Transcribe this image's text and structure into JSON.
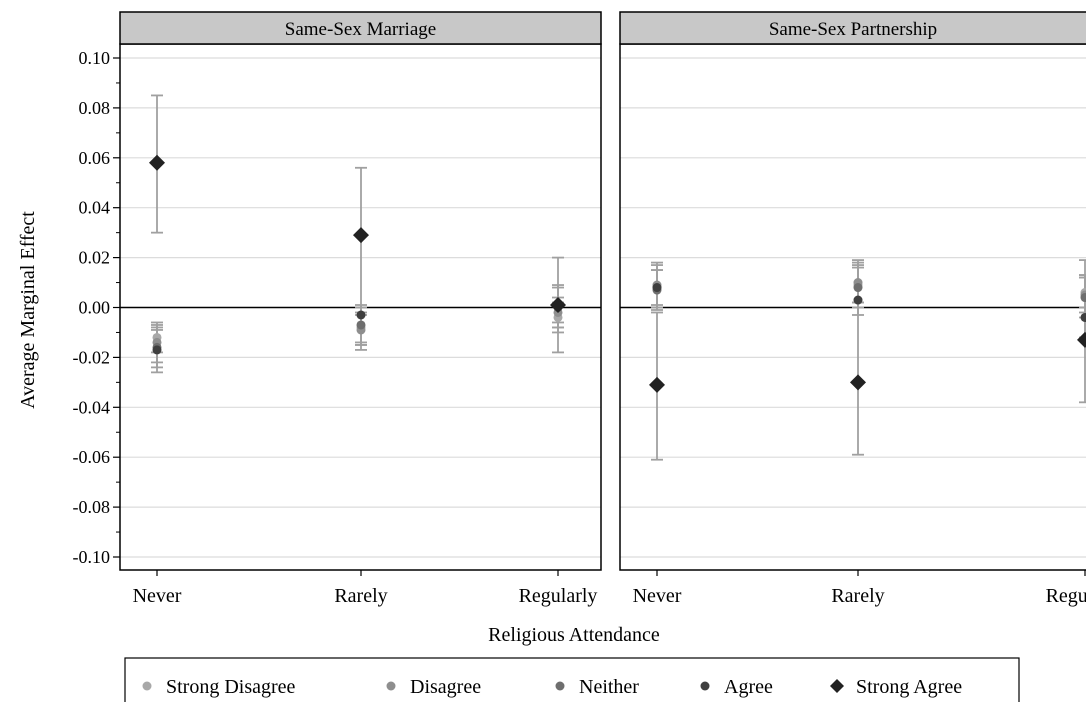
{
  "chart_data": {
    "type": "scatter",
    "ylabel": "Average Marginal Effect",
    "xlabel": "Religious Attendance",
    "categories": [
      "Never",
      "Rarely",
      "Regularly"
    ],
    "ylim": [
      -0.1,
      0.1
    ],
    "yticks": [
      "0.10",
      "0.08",
      "0.06",
      "0.04",
      "0.02",
      "0.00",
      "-0.02",
      "-0.04",
      "-0.06",
      "-0.08",
      "-0.10"
    ],
    "ytick_values": [
      0.1,
      0.08,
      0.06,
      0.04,
      0.02,
      0.0,
      -0.02,
      -0.04,
      -0.06,
      -0.08,
      -0.1
    ],
    "grid": "horizontal",
    "legend_position": "bottom",
    "reference_line": 0,
    "series_styles": [
      {
        "name": "Strong Disagree",
        "marker": "circle",
        "color": "#a8a8a8"
      },
      {
        "name": "Disagree",
        "marker": "circle",
        "color": "#8e8e8e"
      },
      {
        "name": "Neither",
        "marker": "circle",
        "color": "#6e6e6e"
      },
      {
        "name": "Agree",
        "marker": "circle",
        "color": "#3f3f3f"
      },
      {
        "name": "Strong Agree",
        "marker": "diamond",
        "color": "#222222"
      }
    ],
    "errorbar_color": "#a0a0a0",
    "panels": [
      {
        "title": "Same-Sex Marriage",
        "series": [
          {
            "name": "Strong Disagree",
            "values": [
              -0.012,
              -0.008,
              -0.004
            ],
            "lower": [
              -0.018,
              -0.014,
              -0.01
            ],
            "upper": [
              -0.006,
              -0.002,
              0.002
            ]
          },
          {
            "name": "Disagree",
            "values": [
              -0.014,
              -0.009,
              -0.002
            ],
            "lower": [
              -0.022,
              -0.015,
              -0.008
            ],
            "upper": [
              -0.007,
              -0.003,
              0.004
            ]
          },
          {
            "name": "Neither",
            "values": [
              -0.016,
              -0.007,
              0.0
            ],
            "lower": [
              -0.024,
              -0.015,
              -0.006
            ],
            "upper": [
              -0.008,
              0.001,
              0.008
            ]
          },
          {
            "name": "Agree",
            "values": [
              -0.017,
              -0.003,
              0.001
            ],
            "lower": [
              -0.026,
              -0.017,
              -0.008
            ],
            "upper": [
              -0.009,
              0.0,
              0.009
            ]
          },
          {
            "name": "Strong Agree",
            "values": [
              0.058,
              0.029,
              0.001
            ],
            "lower": [
              0.03,
              0.0,
              -0.018
            ],
            "upper": [
              0.085,
              0.056,
              0.02
            ]
          }
        ]
      },
      {
        "title": "Same-Sex Partnership",
        "series": [
          {
            "name": "Strong Disagree",
            "values": [
              0.008,
              0.009,
              0.006
            ],
            "lower": [
              0.001,
              0.002,
              0.0
            ],
            "upper": [
              0.015,
              0.016,
              0.012
            ]
          },
          {
            "name": "Disagree",
            "values": [
              0.009,
              0.01,
              0.005
            ],
            "lower": [
              0.0,
              0.002,
              -0.002
            ],
            "upper": [
              0.017,
              0.018,
              0.013
            ]
          },
          {
            "name": "Neither",
            "values": [
              0.007,
              0.008,
              0.004
            ],
            "lower": [
              -0.001,
              0.0,
              -0.004
            ],
            "upper": [
              0.015,
              0.017,
              0.013
            ]
          },
          {
            "name": "Agree",
            "values": [
              0.008,
              0.003,
              -0.004
            ],
            "lower": [
              0.0,
              -0.003,
              -0.012
            ],
            "upper": [
              0.018,
              0.019,
              0.019
            ]
          },
          {
            "name": "Strong Agree",
            "values": [
              -0.031,
              -0.03,
              -0.013
            ],
            "lower": [
              -0.061,
              -0.059,
              -0.038
            ],
            "upper": [
              -0.002,
              0.0,
              0.012
            ]
          }
        ]
      }
    ]
  }
}
